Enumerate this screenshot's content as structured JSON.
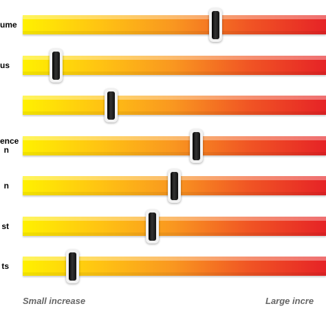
{
  "chart_data": {
    "type": "slider-scale",
    "categories": [
      "ume",
      "us",
      "",
      "ence\nn",
      "n",
      "st",
      "ts"
    ],
    "values": [
      0.65,
      0.07,
      0.27,
      0.58,
      0.5,
      0.42,
      0.13
    ],
    "x_range": [
      0,
      1
    ],
    "scale_min_label": "Small increase",
    "scale_max_label": "Large incre",
    "gradient_colors": [
      "#fff100",
      "#ffc412",
      "#f99620",
      "#f05424",
      "#e62326"
    ],
    "handle_color": "#000000"
  }
}
